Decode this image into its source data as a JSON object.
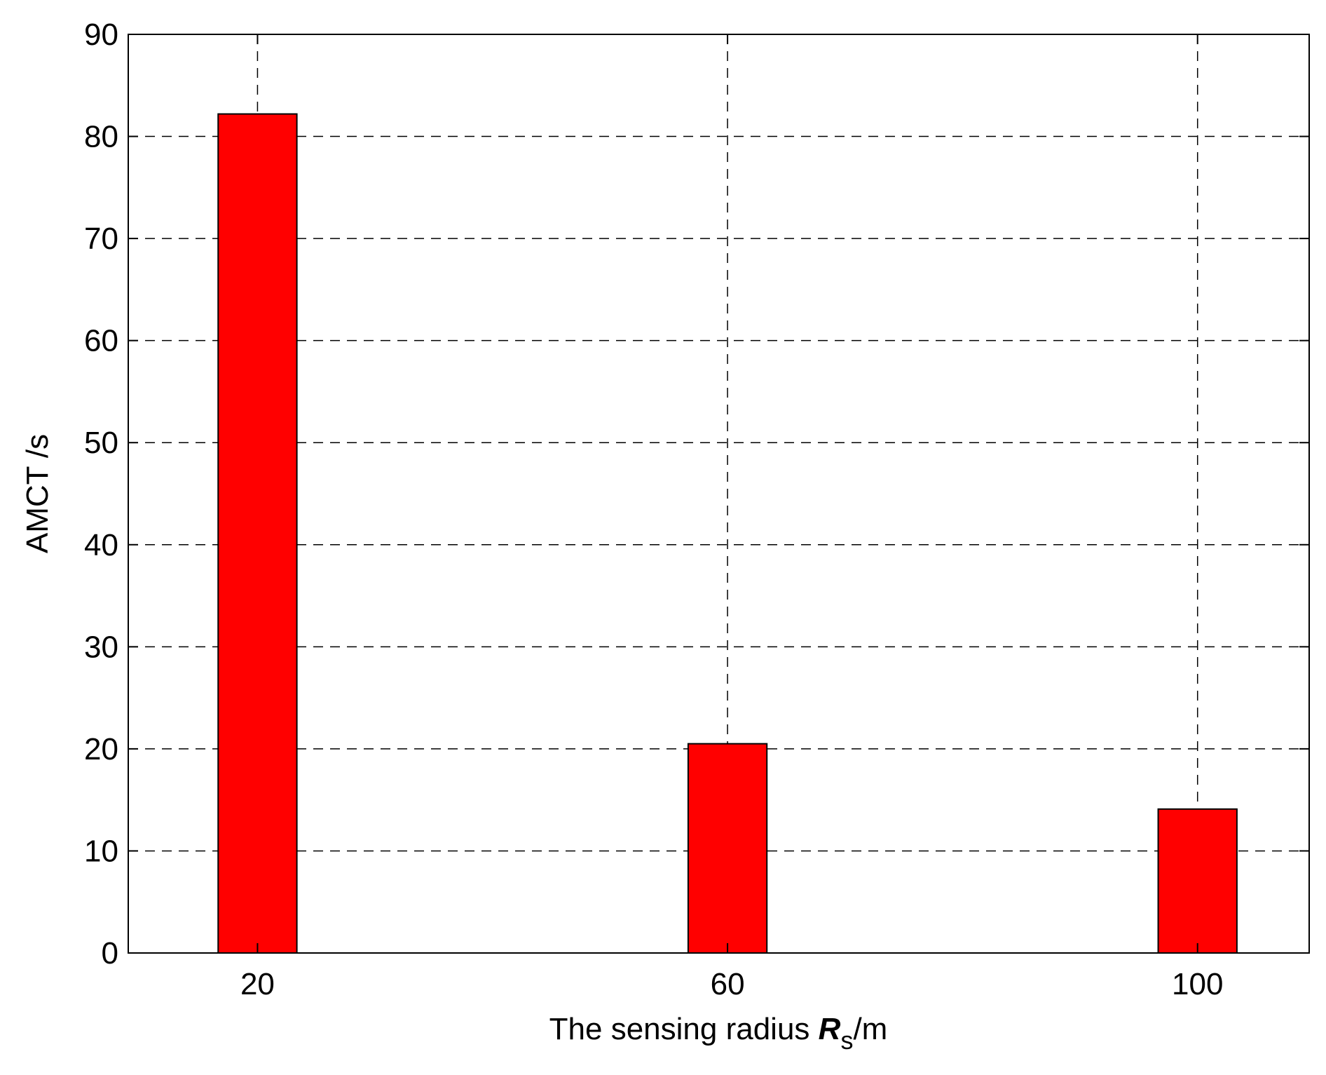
{
  "chart_data": {
    "type": "bar",
    "categories": [
      "20",
      "60",
      "100"
    ],
    "values": [
      82.2,
      20.5,
      14.1
    ],
    "x_values": [
      20,
      60,
      100
    ],
    "xlim": [
      9,
      109.5
    ],
    "ylim": [
      0,
      90
    ],
    "yticks": [
      0,
      10,
      20,
      30,
      40,
      50,
      60,
      70,
      80,
      90
    ],
    "ylabel": "AMCT /s",
    "xlabel": {
      "prefix": "The sensing radius ",
      "symbol": "R",
      "subscript": "s",
      "suffix": "/m"
    },
    "bar_color": "#ff0000",
    "grid": true,
    "grid_style": "dashed"
  }
}
